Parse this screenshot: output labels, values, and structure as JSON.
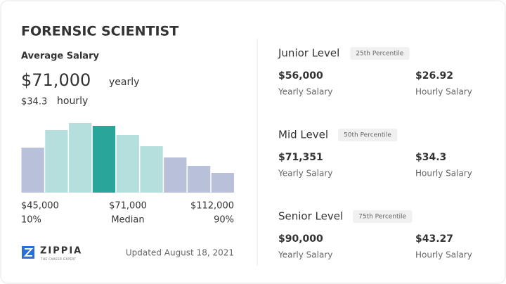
{
  "title": "FORENSIC SCIENTIST",
  "average": {
    "label": "Average Salary",
    "yearly": "$71,000",
    "yearly_unit": "yearly",
    "hourly": "$34.3",
    "hourly_unit": "hourly"
  },
  "chart_data": {
    "type": "bar",
    "values": [
      64,
      89,
      99,
      95,
      82,
      66,
      50,
      38,
      28
    ],
    "colors": [
      "#b8c1d9",
      "#b4dfdc",
      "#b4dfdc",
      "#2aa59a",
      "#b4dfdc",
      "#b4dfdc",
      "#b8c1d9",
      "#b8c1d9",
      "#b8c1d9"
    ]
  },
  "range": {
    "low": "$45,000",
    "low_pct": "10%",
    "mid": "$71,000",
    "mid_label": "Median",
    "high": "$112,000",
    "high_pct": "90%"
  },
  "brand": {
    "name": "ZIPPIA",
    "tagline": "THE CAREER EXPERT"
  },
  "updated": "Updated August 18, 2021",
  "levels": [
    {
      "name": "Junior Level",
      "percentile": "25th Percentile",
      "yearly": "$56,000",
      "yearly_label": "Yearly Salary",
      "hourly": "$26.92",
      "hourly_label": "Hourly Salary"
    },
    {
      "name": "Mid Level",
      "percentile": "50th Percentile",
      "yearly": "$71,351",
      "yearly_label": "Yearly Salary",
      "hourly": "$34.3",
      "hourly_label": "Hourly Salary"
    },
    {
      "name": "Senior Level",
      "percentile": "75th Percentile",
      "yearly": "$90,000",
      "yearly_label": "Yearly Salary",
      "hourly": "$43.27",
      "hourly_label": "Hourly Salary"
    }
  ]
}
